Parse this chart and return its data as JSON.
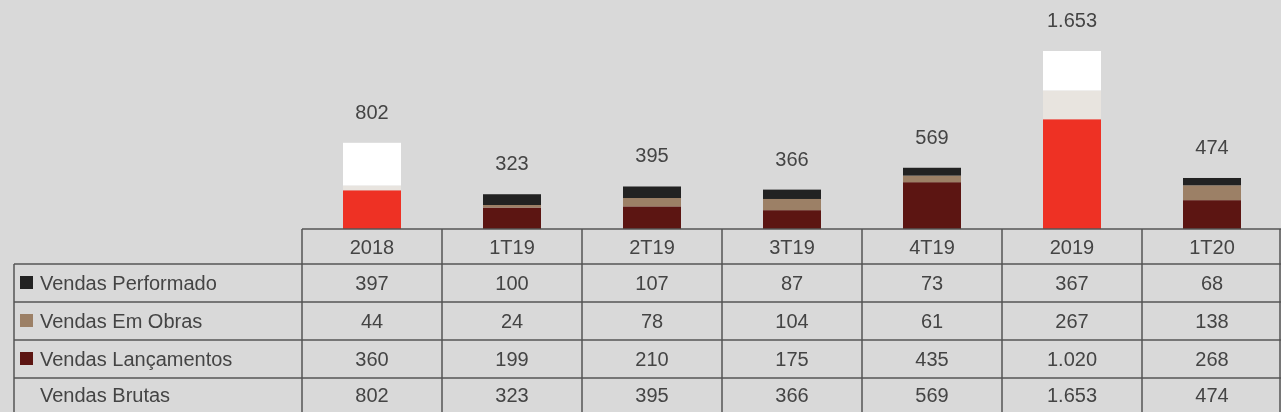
{
  "chart_data": {
    "type": "bar",
    "stacked": true,
    "categories": [
      "2018",
      "1T19",
      "2T19",
      "3T19",
      "4T19",
      "2019",
      "1T20"
    ],
    "series": [
      {
        "name": "Vendas Lançamentos",
        "color": "#5c1512",
        "colors": [
          "#ee3124",
          "#5c1512",
          "#5c1512",
          "#5c1512",
          "#5c1512",
          "#ee3124",
          "#5c1512"
        ],
        "values": [
          360,
          199,
          210,
          175,
          435,
          1020,
          268
        ],
        "value_labels": [
          "360",
          "199",
          "210",
          "175",
          "435",
          "1.020",
          "268"
        ]
      },
      {
        "name": "Vendas Em Obras",
        "color": "#9c8066",
        "colors": [
          "#e8e4df",
          "#9c8066",
          "#9c8066",
          "#9c8066",
          "#9c8066",
          "#e8e4df",
          "#9c8066"
        ],
        "values": [
          44,
          24,
          78,
          104,
          61,
          267,
          138
        ],
        "value_labels": [
          "44",
          "24",
          "78",
          "104",
          "61",
          "267",
          "138"
        ]
      },
      {
        "name": "Vendas Performado",
        "color": "#222222",
        "colors": [
          "#ffffff",
          "#222222",
          "#222222",
          "#222222",
          "#222222",
          "#ffffff",
          "#222222"
        ],
        "values": [
          397,
          100,
          107,
          87,
          73,
          367,
          68
        ],
        "value_labels": [
          "397",
          "100",
          "107",
          "87",
          "73",
          "367",
          "68"
        ]
      }
    ],
    "totals": [
      "802",
      "323",
      "395",
      "366",
      "569",
      "1.653",
      "474"
    ],
    "annotations": [
      "Vendas Brutas"
    ],
    "legend": "bottom left"
  }
}
